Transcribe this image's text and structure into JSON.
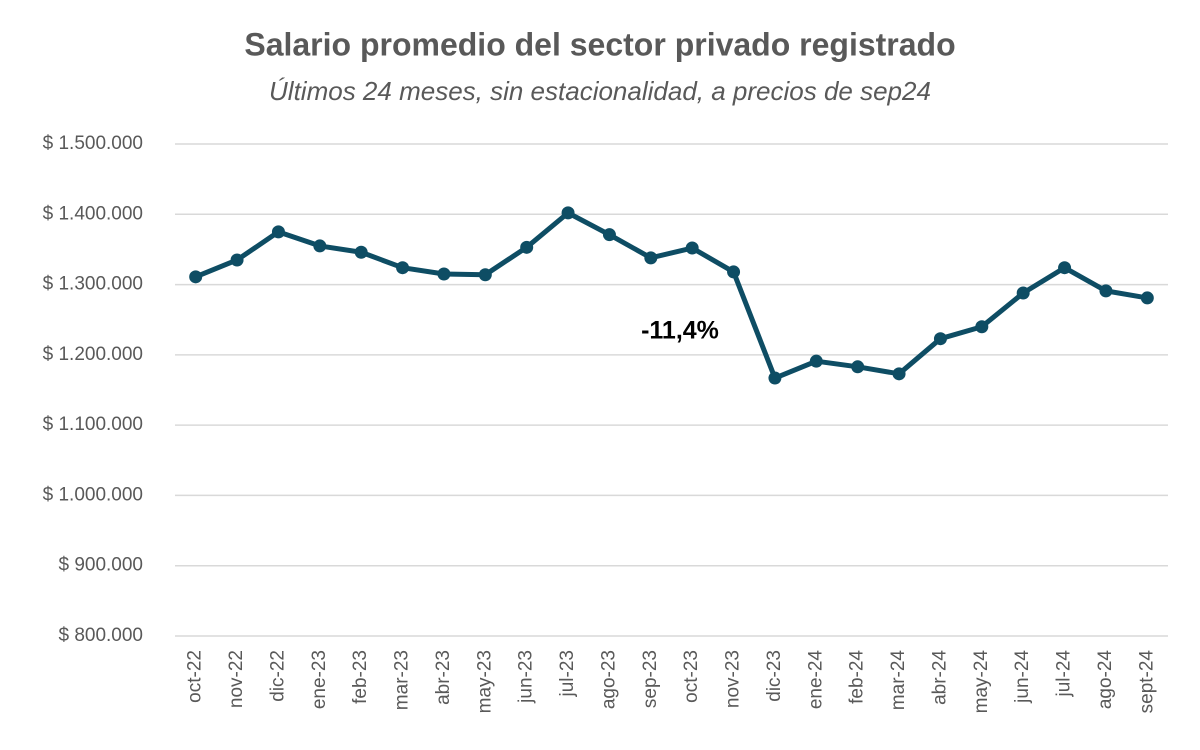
{
  "chart_data": {
    "type": "line",
    "title": "Salario promedio del sector privado registrado",
    "subtitle": "Últimos 24 meses, sin estacionalidad, a precios de sep24",
    "annotation": "-11,4%",
    "categories": [
      "oct-22",
      "nov-22",
      "dic-22",
      "ene-23",
      "feb-23",
      "mar-23",
      "abr-23",
      "may-23",
      "jun-23",
      "jul-23",
      "ago-23",
      "sep-23",
      "oct-23",
      "nov-23",
      "dic-23",
      "ene-24",
      "feb-24",
      "mar-24",
      "abr-24",
      "may-24",
      "jun-24",
      "jul-24",
      "ago-24",
      "sept-24"
    ],
    "series": [
      {
        "color": "#0e4d64",
        "values": [
          1311000,
          1335000,
          1375000,
          1355000,
          1346000,
          1324000,
          1315000,
          1314000,
          1353000,
          1402000,
          1371000,
          1338000,
          1352000,
          1318000,
          1167000,
          1191000,
          1183000,
          1173000,
          1223000,
          1240000,
          1288000,
          1324000,
          1291000,
          1281000
        ]
      }
    ],
    "ylim": [
      800000,
      1500000
    ],
    "yticks": [
      {
        "value": 800000,
        "label": "$ 800.000"
      },
      {
        "value": 900000,
        "label": "$ 900.000"
      },
      {
        "value": 1000000,
        "label": "$ 1.000.000"
      },
      {
        "value": 1100000,
        "label": "$ 1.100.000"
      },
      {
        "value": 1200000,
        "label": "$ 1.200.000"
      },
      {
        "value": 1300000,
        "label": "$ 1.300.000"
      },
      {
        "value": 1400000,
        "label": "$ 1.400.000"
      },
      {
        "value": 1500000,
        "label": "$ 1.500.000"
      }
    ],
    "grid": true
  }
}
